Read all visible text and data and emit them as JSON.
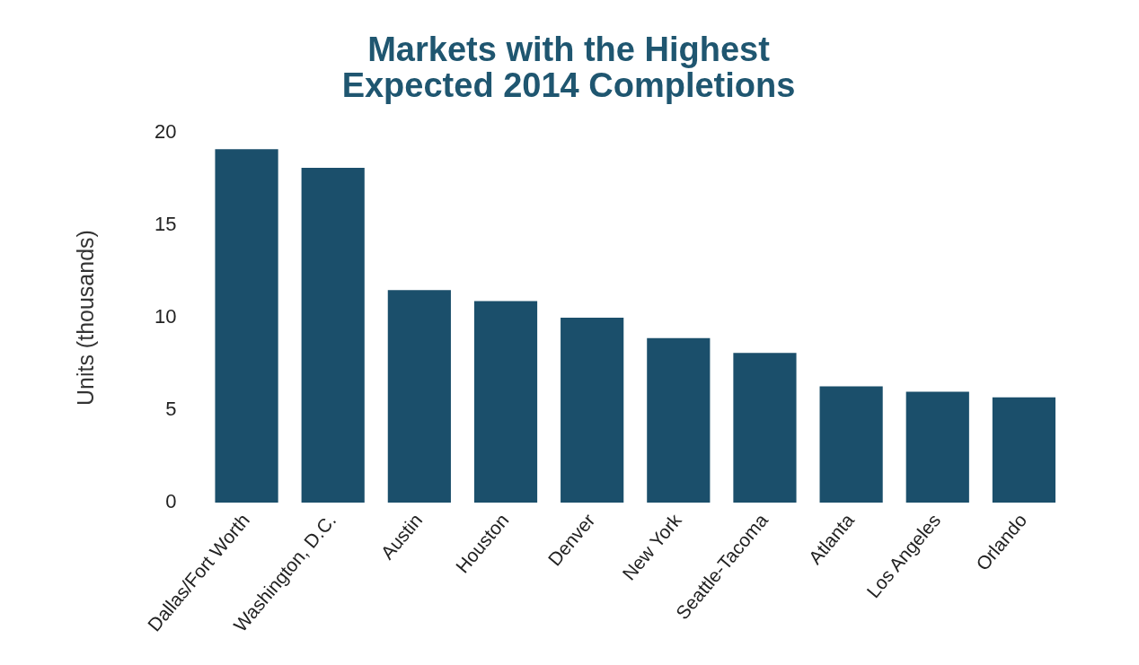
{
  "chart_data": {
    "type": "bar",
    "title": [
      "Markets with the Highest",
      "Expected 2014 Completions"
    ],
    "ylabel": "Units (thousands)",
    "categories": [
      "Dallas/Fort Worth",
      "Washington, D.C.",
      "Austin",
      "Houston",
      "Denver",
      "New York",
      "Seattle-Tacoma",
      "Atlanta",
      "Los Angeles",
      "Orlando"
    ],
    "values": [
      19.1,
      18.1,
      11.5,
      10.9,
      10.0,
      8.9,
      8.1,
      6.3,
      6.0,
      5.7
    ],
    "color": "#1b4f6b",
    "ylim": [
      0,
      20
    ],
    "yticks": [
      0,
      5,
      10,
      15,
      20
    ],
    "grid": false,
    "legend": false
  }
}
